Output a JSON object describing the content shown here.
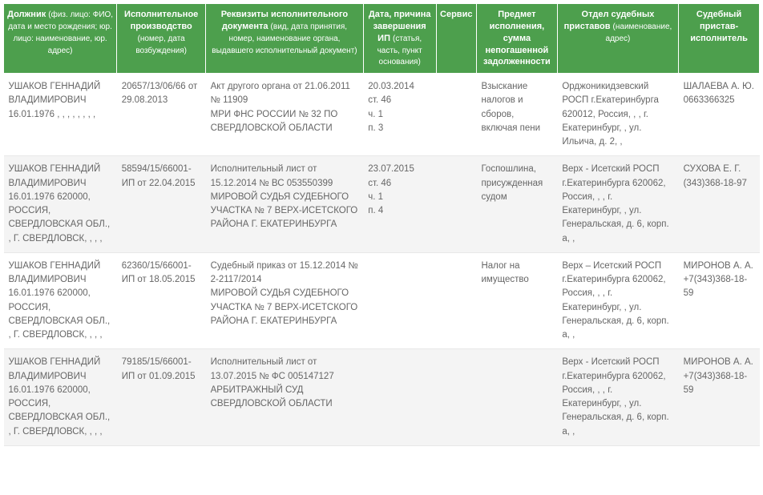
{
  "headers": {
    "debtor": {
      "main": "Должник",
      "sub": "(физ. лицо: ФИО, дата и место рождения; юр. лицо: наименование, юр. адрес)"
    },
    "case": {
      "main": "Исполнительное производство",
      "sub": "(номер, дата возбуждения)"
    },
    "doc": {
      "main": "Реквизиты исполнительного документа",
      "sub": "(вид, дата принятия, номер, наименование органа, выдавшего исполнительный документ)"
    },
    "date": {
      "main": "Дата, причина завершения ИП",
      "sub": "(статья, часть, пункт основания)"
    },
    "service": {
      "main": "Сервис",
      "sub": ""
    },
    "subject": {
      "main": "Предмет исполнения, сумма непогашенной задолженности",
      "sub": ""
    },
    "dept": {
      "main": "Отдел судебных приставов",
      "sub": "(наименование, адрес)"
    },
    "bailiff": {
      "main": "Судебный пристав-исполнитель",
      "sub": ""
    }
  },
  "rows": [
    {
      "debtor": "УШАКОВ ГЕННАДИЙ ВЛАДИМИРОВИЧ 16.01.1976 , , , , , , , ,",
      "case": "20657/13/06/66 от 29.08.2013",
      "doc": "Акт другого органа от 21.06.2011 № 11909\nМРИ ФНС РОССИИ № 32 ПО СВЕРДЛОВСКОЙ ОБЛАСТИ",
      "date": "20.03.2014\nст. 46\nч. 1\nп. 3",
      "service": "",
      "subject": "Взыскание налогов и сборов, включая пени",
      "dept": "Орджоникидзевский РОСП г.Екатеринбурга 620012, Россия, , , г. Екатеринбург, , ул. Ильича, д. 2, ,",
      "bailiff": "ШАЛАЕВА А. Ю. 0663366325"
    },
    {
      "debtor": "УШАКОВ ГЕННАДИЙ ВЛАДИМИРОВИЧ 16.01.1976 620000, РОССИЯ, СВЕРДЛОВСКАЯ ОБЛ., , Г. СВЕРДЛОВСК, , , ,",
      "case": "58594/15/66001-ИП от 22.04.2015",
      "doc": "Исполнительный лист от 15.12.2014 № ВС 053550399\nМИРОВОЙ СУДЬЯ СУДЕБНОГО УЧАСТКА № 7 ВЕРХ-ИСЕТСКОГО РАЙОНА Г. ЕКАТЕРИНБУРГА",
      "date": "23.07.2015\nст. 46\nч. 1\nп. 4",
      "service": "",
      "subject": "Госпошлина, присужденная судом",
      "dept": "Верх - Исетский РОСП г.Екатеринбурга 620062, Россия, , , г. Екатеринбург, , ул. Генеральская, д. 6, корп. а, ,",
      "bailiff": "СУХОВА Е. Г. (343)368-18-97"
    },
    {
      "debtor": "УШАКОВ ГЕННАДИЙ ВЛАДИМИРОВИЧ 16.01.1976 620000, РОССИЯ, СВЕРДЛОВСКАЯ ОБЛ., , Г. СВЕРДЛОВСК, , , ,",
      "case": "62360/15/66001-ИП от 18.05.2015",
      "doc": "Судебный приказ от 15.12.2014 № 2-2117/2014\nМИРОВОЙ СУДЬЯ СУДЕБНОГО УЧАСТКА № 7 ВЕРХ-ИСЕТСКОГО РАЙОНА Г. ЕКАТЕРИНБУРГА",
      "date": "",
      "service": "",
      "subject": "Налог на имущество",
      "dept": "Верх – Исетский РОСП г.Екатеринбурга 620062, Россия, , , г. Екатеринбург, , ул. Генеральская, д. 6, корп. а, ,",
      "bailiff": "МИРОНОВ А. А. +7(343)368-18-59"
    },
    {
      "debtor": "УШАКОВ ГЕННАДИЙ ВЛАДИМИРОВИЧ 16.01.1976 620000, РОССИЯ, СВЕРДЛОВСКАЯ ОБЛ., , Г. СВЕРДЛОВСК, , , ,",
      "case": "79185/15/66001-ИП от 01.09.2015",
      "doc": "Исполнительный лист от 13.07.2015 № ФС 005147127\nАРБИТРАЖНЫЙ СУД СВЕРДЛОВСКОЙ ОБЛАСТИ",
      "date": "",
      "service": "",
      "subject": "",
      "dept": "Верх - Исетский РОСП г.Екатеринбурга 620062, Россия, , , г. Екатеринбург, , ул. Генеральская, д. 6, корп. а, ,",
      "bailiff": "МИРОНОВ А. А. +7(343)368-18-59"
    }
  ]
}
